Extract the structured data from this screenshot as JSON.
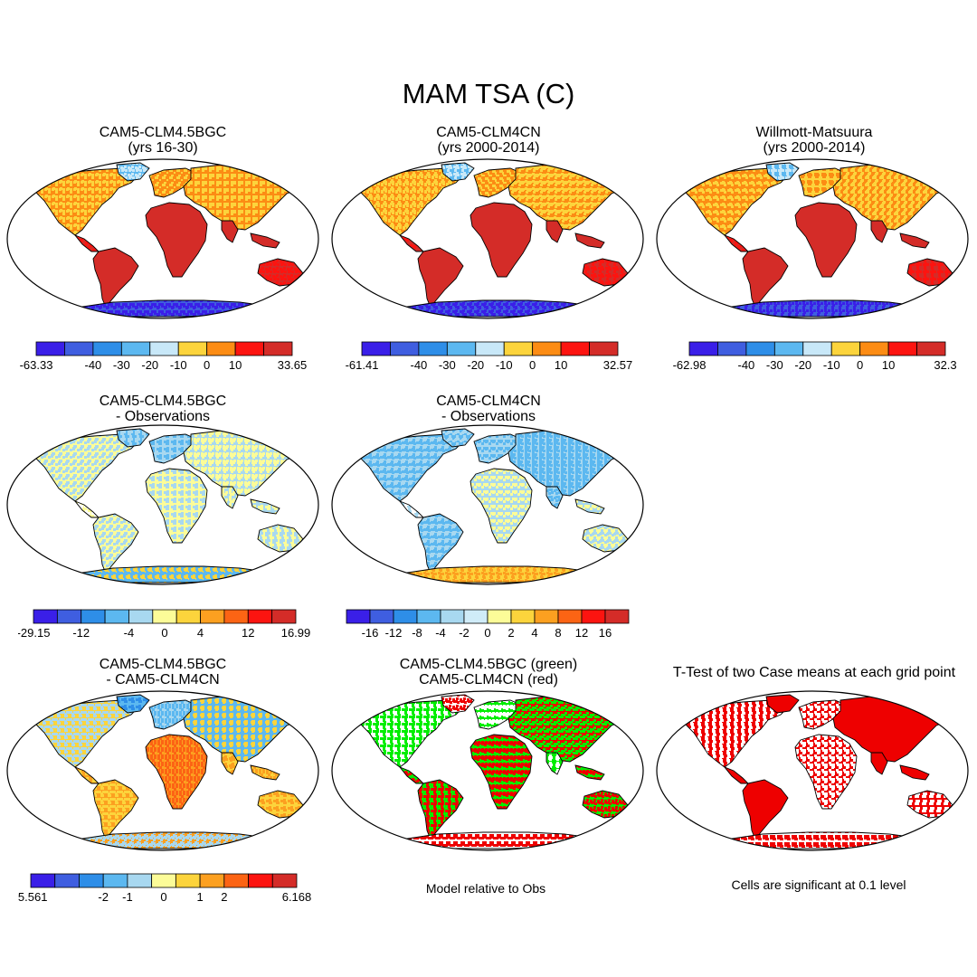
{
  "title": "MAM TSA (C)",
  "colors": {
    "abs": [
      "#3a1fe8",
      "#3f5ee0",
      "#2e8ee8",
      "#5cb8f0",
      "#c8e8f8",
      "#fcd43c",
      "#fc8c14",
      "#fc1410",
      "#d42c28"
    ],
    "diff": [
      "#3a1fe8",
      "#3f5ee0",
      "#2e8ee8",
      "#5cb8f0",
      "#a8d8f0",
      "#fcfc98",
      "#fcd43c",
      "#fca020",
      "#fc6414",
      "#fc1410",
      "#d42c28"
    ],
    "diff2": [
      "#3a1fe8",
      "#3f5ee0",
      "#2e8ee8",
      "#5cb8f0",
      "#a8d8f0",
      "#d0ecf8",
      "#fcfc98",
      "#fcd43c",
      "#fca020",
      "#fc6414",
      "#fc1410",
      "#d42c28"
    ],
    "green": "#00ee00",
    "red": "#ee0000"
  },
  "panels": [
    {
      "id": "p1",
      "title1": "CAM5-CLM4.5BGC",
      "title2": "(yrs 16-30)",
      "style": "abs"
    },
    {
      "id": "p2",
      "title1": "CAM5-CLM4CN",
      "title2": "(yrs 2000-2014)",
      "style": "abs"
    },
    {
      "id": "p3",
      "title1": "Willmott-Matsuura",
      "title2": "(yrs 2000-2014)",
      "style": "abs"
    },
    {
      "id": "p4",
      "title1": "CAM5-CLM4.5BGC",
      "title2": "- Observations",
      "style": "diffobs"
    },
    {
      "id": "p5",
      "title1": "CAM5-CLM4CN",
      "title2": "- Observations",
      "style": "diffobs2"
    },
    {
      "id": "p6",
      "title1": "CAM5-CLM4.5BGC",
      "title2": "- CAM5-CLM4CN",
      "style": "modeldiff"
    },
    {
      "id": "p7",
      "title1": "CAM5-CLM4.5BGC (green)",
      "title2": "CAM5-CLM4CN (red)",
      "style": "greenred"
    },
    {
      "id": "p8",
      "title1": "T-Test of two Case means at each grid point",
      "title2": "",
      "style": "ttest"
    }
  ],
  "colorbars": [
    {
      "id": "cb1",
      "labels": [
        "-63.33",
        "-40",
        "-30",
        "-20",
        "-10",
        "0",
        "10",
        "33.65"
      ]
    },
    {
      "id": "cb2",
      "labels": [
        "-61.41",
        "-40",
        "-30",
        "-20",
        "-10",
        "0",
        "10",
        "32.57"
      ]
    },
    {
      "id": "cb3",
      "labels": [
        "-62.98",
        "-40",
        "-30",
        "-20",
        "-10",
        "0",
        "10",
        "32.3"
      ]
    },
    {
      "id": "cb4",
      "labels": [
        "-29.15",
        "-12",
        "-4",
        "0",
        "4",
        "12",
        "16.99"
      ]
    },
    {
      "id": "cb5",
      "labels": [
        "-16",
        "-12",
        "-8",
        "-4",
        "-2",
        "0",
        "2",
        "4",
        "8",
        "12",
        "16"
      ]
    },
    {
      "id": "cb6",
      "labels": [
        "-5.561",
        "-2",
        "-1",
        "0",
        "1",
        "2",
        "6.168"
      ]
    }
  ],
  "notes": {
    "model_relative": "Model relative to Obs",
    "significance": "Cells are significant at 0.1 level"
  }
}
